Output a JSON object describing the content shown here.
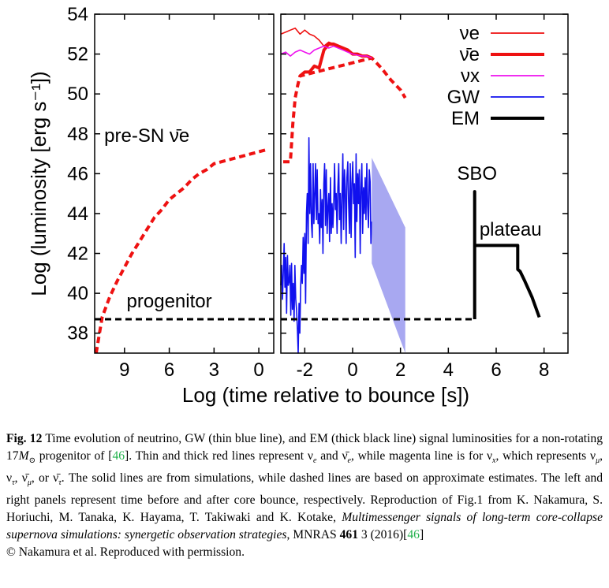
{
  "chart_data": {
    "type": "line",
    "ylabel": "Log (luminosity [erg s⁻¹])",
    "xlabel": "Log (time relative  to bounce [s])",
    "ylim": [
      37,
      54
    ],
    "yticks": [
      "38",
      "40",
      "42",
      "44",
      "46",
      "48",
      "50",
      "52",
      "54"
    ],
    "panels": [
      {
        "side": "left",
        "xlim": [
          11,
          -1
        ],
        "xticks": [
          "9",
          "6",
          "3",
          "0"
        ],
        "annotations": [
          "pre-SN ν̄e",
          "progenitor"
        ]
      },
      {
        "side": "right",
        "xlim": [
          -3,
          9
        ],
        "xticks": [
          "-2",
          "0",
          "2",
          "4",
          "6",
          "8"
        ],
        "annotations": [
          "SBO",
          "plateau"
        ]
      }
    ],
    "legend": {
      "position": "top-right",
      "entries": [
        {
          "label": "νe",
          "color": "#ee1111",
          "style": "thin"
        },
        {
          "label": "ν̄e",
          "color": "#ee1111",
          "style": "thick"
        },
        {
          "label": "νx",
          "color": "#ee11ee",
          "style": "thin"
        },
        {
          "label": "GW",
          "color": "#1111ee",
          "style": "thin"
        },
        {
          "label": "EM",
          "color": "#000000",
          "style": "thick"
        }
      ]
    },
    "series": [
      {
        "name": "pre-SN ν̄e",
        "panel": "left",
        "color": "#ee1111",
        "dashed": true,
        "x": [
          10.9,
          10.5,
          10,
          9.5,
          9,
          8.5,
          8,
          7.5,
          7,
          6.5,
          6,
          5,
          4.5,
          4,
          3.5,
          3,
          2.5,
          2,
          1.5,
          1,
          0.5,
          0,
          -0.5
        ],
        "y": [
          37,
          38.8,
          39.8,
          40.6,
          41.3,
          42,
          42.6,
          43.2,
          43.8,
          44.2,
          44.7,
          45.3,
          45.7,
          46,
          46.2,
          46.5,
          46.6,
          46.7,
          46.8,
          46.9,
          47,
          47.1,
          47.2
        ]
      },
      {
        "name": "progenitor",
        "panel": "left",
        "color": "#000000",
        "dashed": true,
        "x": [
          11,
          -1
        ],
        "y": [
          38.7,
          38.7
        ]
      },
      {
        "name": "νe",
        "panel": "right",
        "color": "#ee1111",
        "style": "thin",
        "x": [
          -3,
          -2.8,
          -2.6,
          -2.4,
          -2.2,
          -2,
          -1.8,
          -1.6,
          -1.4,
          -1.2,
          -1,
          -0.8,
          -0.6,
          -0.4,
          -0.2,
          0,
          0.2,
          0.4,
          0.6,
          0.8
        ],
        "y": [
          53,
          53.1,
          53.2,
          53.3,
          53,
          53.2,
          53,
          52.9,
          52.7,
          52.4,
          52.6,
          52.5,
          52.4,
          52.3,
          52.2,
          52,
          52,
          51.9,
          51.95,
          51.8
        ]
      },
      {
        "name": "ν̄e",
        "panel": "right",
        "color": "#ee1111",
        "style": "thick",
        "dashed": false,
        "x": [
          -2.2,
          -2,
          -1.8,
          -1.6,
          -1.4,
          -1.2,
          -1,
          -0.8,
          -0.6,
          -0.4,
          -0.2,
          0,
          0.2,
          0.4,
          0.6,
          0.8
        ],
        "y": [
          50.9,
          51.1,
          51.1,
          51.4,
          51.3,
          52.2,
          52.5,
          52.5,
          52.4,
          52.3,
          52.2,
          52,
          52,
          51.9,
          51.9,
          51.8
        ]
      },
      {
        "name": "ν̄e estimate",
        "panel": "right",
        "color": "#ee1111",
        "style": "thick",
        "dashed": true,
        "x": [
          -2.9,
          -2.6,
          -2.5,
          -2.4,
          -2.3,
          -2.2,
          0.8,
          1.2,
          1.6,
          2,
          2.2
        ],
        "y": [
          46.6,
          46.6,
          48.5,
          49.8,
          50.4,
          50.9,
          51.8,
          51.3,
          50.7,
          50.2,
          49.8
        ]
      },
      {
        "name": "νx",
        "panel": "right",
        "color": "#ee11ee",
        "style": "thin",
        "x": [
          -3,
          -2.8,
          -2.6,
          -2.4,
          -2.2,
          -2,
          -1.8,
          -1.6,
          -1.4,
          -1.2,
          -1,
          -0.8,
          -0.6,
          -0.4,
          -0.2,
          0,
          0.2,
          0.4,
          0.6,
          0.8
        ],
        "y": [
          52,
          52.1,
          51.9,
          52.1,
          52.2,
          52.1,
          52,
          52.2,
          52.3,
          52.4,
          52.3,
          52.4,
          52.3,
          52.2,
          52.1,
          52,
          51.95,
          51.9,
          51.9,
          51.8
        ]
      },
      {
        "name": "GW",
        "panel": "right",
        "color": "#1111ee",
        "style": "thin",
        "x_start": -3,
        "x_end": 0.8,
        "y": [
          40.4,
          41.4,
          39.7,
          41.0,
          42.5,
          40.3,
          41.8,
          39.0,
          41.9,
          40.4,
          40.6,
          41.4,
          38.9,
          41.5,
          39.2,
          40.5,
          38.6,
          41.4,
          39.7,
          39.2,
          38.2,
          37.0,
          39.5,
          38.0,
          40.3,
          41.4,
          40.5,
          42.8,
          41.0,
          43.0,
          39.5,
          44.0,
          45.0,
          42.5,
          47.8,
          44.0,
          46.5,
          43.5,
          42.8,
          46.5,
          43.5,
          45.0,
          46.5,
          43.7,
          46.2,
          43.5,
          44.0,
          42.5,
          45.2,
          43.3,
          44.7,
          42.0,
          45.5,
          46.5,
          43.4,
          46.2,
          43.0,
          44.3,
          45.0,
          42.6,
          45.8,
          43.0,
          44.5,
          43.3,
          44.5,
          46.5,
          44.2,
          45.0,
          43.0,
          45.3,
          46.5,
          43.7,
          45.0,
          42.5,
          44.8,
          47.0,
          43.2,
          46.2,
          45.2,
          42.5,
          45.8,
          46.6,
          44.6,
          43.0,
          46.5,
          42.8,
          45.5,
          46.6,
          44.5,
          45.5,
          41.8,
          47.0,
          43.6,
          46.0,
          44.5,
          46.2,
          42.0,
          45.3,
          46.5,
          43.0,
          45.3,
          44.0,
          45.8,
          43.7,
          46.5,
          44.4,
          43.3,
          46.2,
          45.6,
          42.5,
          43.6
        ]
      },
      {
        "name": "GW estimate",
        "panel": "right",
        "color": "#9999ee",
        "fill": true,
        "x": [
          0.8,
          2.2
        ],
        "y_upper": [
          46.8,
          43.3
        ],
        "y_lower": [
          41.5,
          37
        ]
      },
      {
        "name": "EM",
        "panel": "right",
        "color": "#000000",
        "style": "thick",
        "x": [
          5.1,
          5.1,
          5.1,
          5.2,
          6.9,
          6.9,
          7.0,
          7.2,
          7.5,
          7.8
        ],
        "y": [
          38.7,
          45.1,
          42.4,
          42.4,
          42.4,
          41.2,
          41.1,
          40.6,
          39.8,
          38.8
        ]
      },
      {
        "name": "EM estimate",
        "panel": "right",
        "color": "#000000",
        "dashed": true,
        "x": [
          -3,
          5.1
        ],
        "y": [
          38.7,
          38.7
        ]
      }
    ]
  },
  "caption": {
    "label": "Fig. 12",
    "text1": "Time evolution of neutrino, GW (thin blue line), and EM (thick black line) signal luminosities for a non-rotating 17",
    "mass": "M",
    "text2": " progenitor of [",
    "ref1": "46",
    "text3": "]. Thin and thick red lines represent ν",
    "text3b": " and ν̄",
    "text4": ", while magenta line is for ν",
    "text5": ", which represents ν",
    "text5b": ", ν",
    "text5c": ", ν̄",
    "text5d": ", or ν̄",
    "text6": ". The solid lines are from simulations, while dashed lines are based on approximate estimates. The left and right panels represent time before and after core bounce, respectively. Reproduction of Fig.1 from K. Nakamura, S. Horiuchi, M. Tanaka, K. Hayama, T. Takiwaki and K. Kotake, ",
    "title": "Multimessenger signals of long-term core-collapse supernova simulations: synergetic observation strategies",
    "text7": ", MNRAS ",
    "volume": "461",
    "text8": " 3 (2016)[",
    "ref2": "46",
    "text9": "]",
    "copyright": "© Nakamura et al. Reproduced with permission."
  }
}
